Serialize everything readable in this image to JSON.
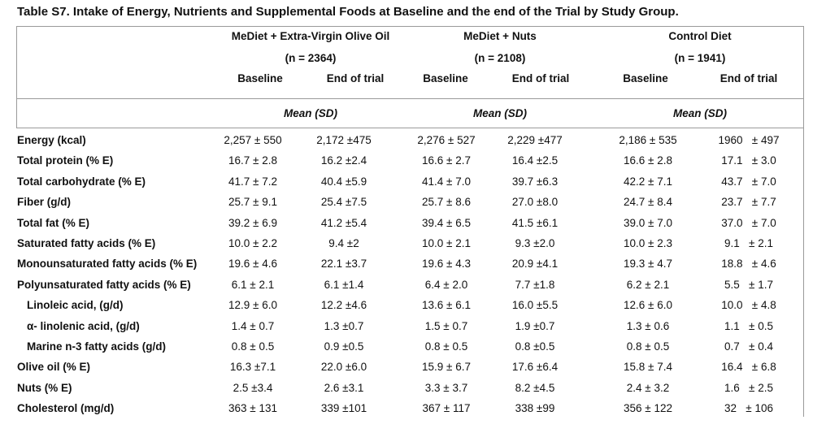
{
  "caption": "Table S7. Intake of Energy, Nutrients and Supplemental Foods at Baseline and the end of the Trial by Study Group.",
  "groups": [
    {
      "name": "MeDiet + Extra-Virgin Olive Oil",
      "n": "(n = 2364)"
    },
    {
      "name": "MeDiet + Nuts",
      "n": "(n = 2108)"
    },
    {
      "name": "Control Diet",
      "n": "(n = 1941)"
    }
  ],
  "subheaders": [
    "Baseline",
    "End of trial",
    "Baseline",
    "End of trial",
    "Baseline",
    "End of trial"
  ],
  "stat_label": "Mean (SD)",
  "rows": [
    {
      "label": "Energy (kcal)",
      "values": [
        "2,257 ± 550",
        "2,172 ±475",
        "2,276 ± 527",
        "2,229 ±477",
        "2,186 ± 535",
        "1960   ± 497"
      ]
    },
    {
      "label": "Total protein (% E)",
      "values": [
        "16.7 ± 2.8",
        "16.2 ±2.4",
        "16.6 ± 2.7",
        "16.4 ±2.5",
        "16.6 ± 2.8",
        "17.1   ± 3.0"
      ]
    },
    {
      "label": "Total carbohydrate (% E)",
      "values": [
        "41.7 ± 7.2",
        "40.4 ±5.9",
        "41.4 ± 7.0",
        "39.7 ±6.3",
        "42.2 ± 7.1",
        "43.7   ± 7.0"
      ]
    },
    {
      "label": "Fiber (g/d)",
      "values": [
        "25.7 ± 9.1",
        "25.4 ±7.5",
        "25.7 ± 8.6",
        "27.0 ±8.0",
        "24.7 ± 8.4",
        "23.7   ± 7.7"
      ]
    },
    {
      "label": "Total fat (% E)",
      "values": [
        "39.2 ± 6.9",
        "41.2 ±5.4",
        "39.4 ± 6.5",
        "41.5 ±6.1",
        "39.0 ± 7.0",
        "37.0   ± 7.0"
      ]
    },
    {
      "label": "Saturated fatty acids (% E)",
      "values": [
        "10.0 ± 2.2",
        "9.4 ±2",
        "10.0 ± 2.1",
        "9.3 ±2.0",
        "10.0 ± 2.3",
        "9.1   ± 2.1"
      ]
    },
    {
      "label": "Monounsaturated fatty acids (% E)",
      "values": [
        "19.6 ± 4.6",
        "22.1 ±3.7",
        "19.6 ± 4.3",
        "20.9 ±4.1",
        "19.3 ± 4.7",
        "18.8   ± 4.6"
      ]
    },
    {
      "label": "Polyunsaturated fatty acids (% E)",
      "values": [
        "6.1 ± 2.1",
        "6.1 ±1.4",
        "6.4 ± 2.0",
        "7.7 ±1.8",
        "6.2 ± 2.1",
        "5.5   ± 1.7"
      ]
    },
    {
      "label": "Linoleic acid, (g/d)",
      "indent": true,
      "values": [
        "12.9 ± 6.0",
        "12.2 ±4.6",
        "13.6 ± 6.1",
        "16.0 ±5.5",
        "12.6 ± 6.0",
        "10.0   ± 4.8"
      ]
    },
    {
      "label": "α- linolenic acid, (g/d)",
      "indent": true,
      "values": [
        "1.4 ± 0.7",
        "1.3 ±0.7",
        "1.5 ± 0.7",
        "1.9 ±0.7",
        "1.3 ± 0.6",
        "1.1   ± 0.5"
      ]
    },
    {
      "label": "Marine n-3 fatty acids (g/d)",
      "indent": true,
      "values": [
        "0.8 ± 0.5",
        "0.9 ±0.5",
        "0.8 ± 0.5",
        "0.8 ±0.5",
        "0.8 ± 0.5",
        "0.7   ± 0.4"
      ]
    },
    {
      "label": "Olive oil (% E)",
      "values": [
        "16.3 ±7.1",
        "22.0 ±6.0",
        "15.9 ± 6.7",
        "17.6 ±6.4",
        "15.8 ± 7.4",
        "16.4   ± 6.8"
      ]
    },
    {
      "label": "Nuts (% E)",
      "values": [
        "2.5 ±3.4",
        "2.6 ±3.1",
        "3.3 ± 3.7",
        "8.2 ±4.5",
        "2.4 ± 3.2",
        "1.6   ± 2.5"
      ]
    },
    {
      "label": "Cholesterol (mg/d)",
      "values": [
        "363 ± 131",
        "339 ±101",
        "367 ± 117",
        "338 ±99",
        "356 ± 122",
        "32   ± 106"
      ]
    }
  ]
}
